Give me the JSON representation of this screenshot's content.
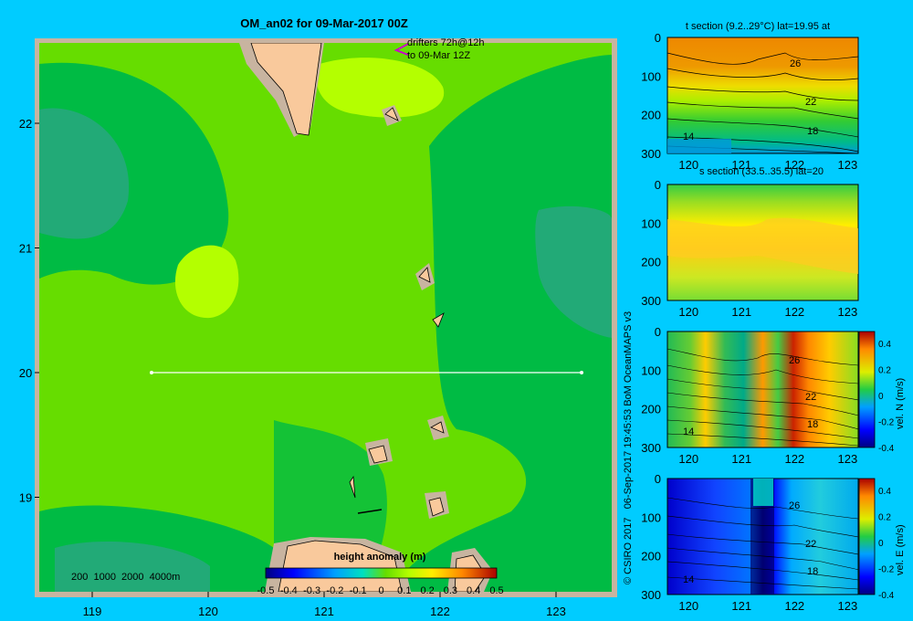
{
  "main_map": {
    "title": "OM_an02 for 09-Mar-2017 00Z",
    "lat_ticks": [
      "22",
      "21",
      "20",
      "19"
    ],
    "lon_ticks": [
      "119",
      "120",
      "121",
      "122",
      "123"
    ],
    "drifters_line1": "drifters 72h@12h",
    "drifters_line2": "to 09-Mar 12Z",
    "depth_legend": "200  1000  2000  4000m",
    "colorbar_title": "height anomaly (m)",
    "colorbar_ticks": [
      "-0.5",
      "-0.4",
      "-0.3",
      "-0.2",
      "-0.1",
      "0",
      "0.1",
      "0.2",
      "0.3",
      "0.4",
      "0.5"
    ],
    "colors": {
      "background": "#00ccff",
      "frame": "#c8b4a0",
      "land": "#f9c99c",
      "shelf": "#c8b4a0",
      "anomaly_mid": "#66dd00",
      "anomaly_high": "#b4ff00",
      "anomaly_low": "#00bb44",
      "anomaly_lowest": "#22aa77",
      "section_line": "#ffffff",
      "drifter": "#cc00cc"
    }
  },
  "credit": "© CSIRO 2017   06-Sep-2017 19:45:53 BoM OceanMAPS v3",
  "panels": {
    "t_section": {
      "title": "t section (9.2..29°C) lat=19.95 at",
      "y_ticks": [
        "0",
        "100",
        "200",
        "300"
      ],
      "x_ticks": [
        "120",
        "121",
        "122",
        "123"
      ],
      "contour_labels": [
        "26",
        "22",
        "18",
        "14"
      ]
    },
    "s_section": {
      "title": "s section (33.5..35.5) lat=20",
      "y_ticks": [
        "0",
        "100",
        "200",
        "300"
      ],
      "x_ticks": [
        "120",
        "121",
        "122",
        "123"
      ]
    },
    "vn_section": {
      "y_ticks": [
        "0",
        "100",
        "200",
        "300"
      ],
      "x_ticks": [
        "120",
        "121",
        "122",
        "123"
      ],
      "contour_labels": [
        "26",
        "22",
        "18",
        "14"
      ],
      "colorbar_label": "vel. N (m/s)",
      "colorbar_ticks": [
        "0.4",
        "0.2",
        "0",
        "-0.2",
        "-0.4"
      ]
    },
    "ve_section": {
      "y_ticks": [
        "0",
        "100",
        "200",
        "300"
      ],
      "x_ticks": [
        "120",
        "121",
        "122",
        "123"
      ],
      "contour_labels": [
        "26",
        "22",
        "18",
        "14"
      ],
      "colorbar_label": "vel. E (m/s)",
      "colorbar_ticks": [
        "0.4",
        "0.2",
        "0",
        "-0.2",
        "-0.4"
      ]
    }
  },
  "chart_data": [
    {
      "type": "heatmap",
      "title": "OM_an02 for 09-Mar-2017 00Z",
      "variable": "height anomaly (m)",
      "colorbar_range": [
        -0.5,
        0.5
      ],
      "x_axis": "longitude",
      "xlim": [
        118.5,
        123.5
      ],
      "y_axis": "latitude",
      "ylim": [
        18.2,
        22.7
      ],
      "section_line": {
        "lat": 20,
        "lon": [
          119.5,
          123.2
        ]
      }
    },
    {
      "type": "heatmap",
      "title": "t section (9.2..29°C) lat=19.95 at",
      "x_range": [
        119.6,
        123.2
      ],
      "y_range": [
        0,
        300
      ],
      "contour_labels": [
        26,
        22,
        18,
        14
      ]
    },
    {
      "type": "heatmap",
      "title": "s section (33.5..35.5) lat=20",
      "x_range": [
        119.6,
        123.2
      ],
      "y_range": [
        0,
        300
      ]
    },
    {
      "type": "heatmap",
      "variable": "vel. N (m/s)",
      "colorbar_range": [
        -0.4,
        0.4
      ],
      "x_range": [
        119.6,
        123.2
      ],
      "y_range": [
        0,
        300
      ]
    },
    {
      "type": "heatmap",
      "variable": "vel. E (m/s)",
      "colorbar_range": [
        -0.4,
        0.4
      ],
      "x_range": [
        119.6,
        123.2
      ],
      "y_range": [
        0,
        300
      ]
    }
  ]
}
